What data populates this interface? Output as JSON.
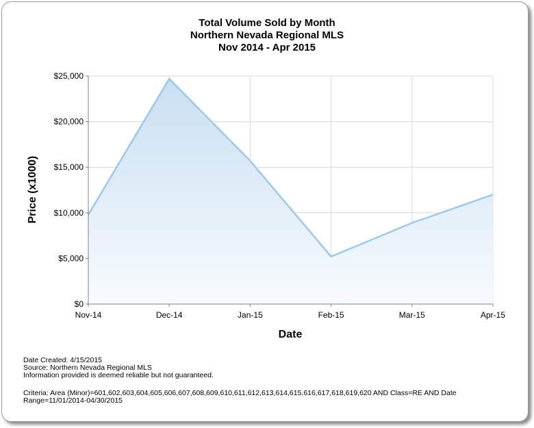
{
  "chart_data": {
    "type": "area",
    "title": "Total Volume Sold by Month",
    "subtitle_lines": [
      "Northern Nevada Regional MLS",
      "Nov 2014 - Apr 2015"
    ],
    "xlabel": "Date",
    "ylabel": "Price (x1000)",
    "categories": [
      "Nov-14",
      "Dec-14",
      "Jan-15",
      "Feb-15",
      "Mar-15",
      "Apr-15"
    ],
    "values": [
      9800,
      24700,
      15700,
      5200,
      8900,
      12000
    ],
    "ylim": [
      0,
      25000
    ],
    "yticks": [
      0,
      5000,
      10000,
      15000,
      20000,
      25000
    ],
    "ytick_labels": [
      "$0",
      "$5,000",
      "$10,000",
      "$15,000",
      "$20,000",
      "$25,000"
    ],
    "grid": true,
    "colors": {
      "line": "#9dc8ec",
      "fill_top": "#c9dff2",
      "fill_bottom": "#f8fbfe",
      "grid": "#d9d9d9"
    }
  },
  "footer": {
    "date_created": "Date Created: 4/15/2015",
    "source": "Source: Northern Nevada Regional MLS",
    "disclaimer": "Information provided is deemed reliable but not guaranteed.",
    "criteria_line1": "Criteria: Area (Minor)=601,602,603,604,605,606,607,608,609,610,611,612,613,614,615,616,617,618,619,620 AND Class=RE AND Date",
    "criteria_line2": "Range=11/01/2014-04/30/2015"
  }
}
